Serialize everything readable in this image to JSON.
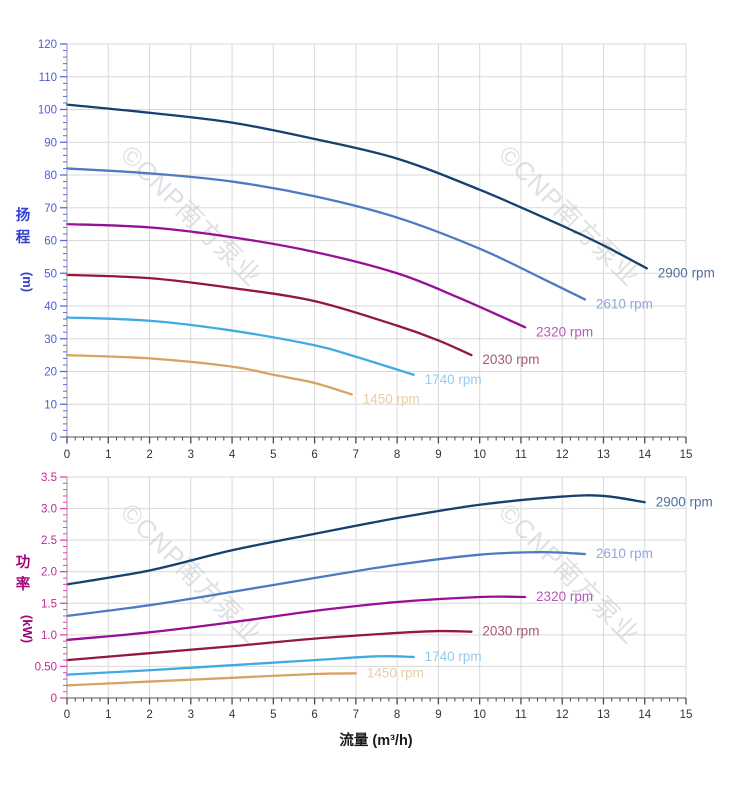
{
  "figure": {
    "description": "Pump performance curves: head and power versus flow at six speeds",
    "watermark": {
      "text": "©CNP南方泵业",
      "color": "#c5c8cf",
      "opacity": 0.55
    }
  },
  "style": {
    "background": "#ffffff",
    "grid_color": "#d9d9d9",
    "axis_line_color": "#9a9a9a",
    "x_axis_line_color": "#8c8c8c",
    "x_tick_color": "#4a4a4a",
    "x_tick_label_color": "#333333",
    "x_title_color": "#1a1a1a"
  },
  "chart_data": [
    {
      "type": "line",
      "name": "head-vs-flow",
      "ylabel_cn": "扬程",
      "ylabel_unit": "(m)",
      "xlabel": null,
      "axis_title_color": "#3240cf",
      "tick_label_color": "#4c5ddd",
      "tick_mark_color": "#5a6ae2",
      "xlim": [
        0,
        15
      ],
      "ylim": [
        0,
        120
      ],
      "x_major_step": 1,
      "x_minor_step": 0.2,
      "y_major_step": 10,
      "y_minor_step": 2,
      "x_tick_labels": [
        "0",
        "1",
        "2",
        "3",
        "4",
        "5",
        "6",
        "7",
        "8",
        "9",
        "10",
        "11",
        "12",
        "13",
        "14",
        "15"
      ],
      "y_tick_labels": [
        "0",
        "10",
        "20",
        "30",
        "40",
        "50",
        "60",
        "70",
        "80",
        "90",
        "100",
        "110",
        "120"
      ],
      "grid": true,
      "legend_position": "end-of-curve",
      "series": [
        {
          "name": "2900 rpm",
          "color": "#16406e",
          "label_color": "#4e6f9d",
          "points": [
            [
              0,
              101.5
            ],
            [
              2,
              99
            ],
            [
              4,
              96
            ],
            [
              6,
              91
            ],
            [
              8,
              85
            ],
            [
              10,
              75.5
            ],
            [
              12,
              64.5
            ],
            [
              13,
              58.5
            ],
            [
              14.05,
              51.5
            ]
          ]
        },
        {
          "name": "2610 rpm",
          "color": "#4e79c4",
          "label_color": "#92a7da",
          "points": [
            [
              0,
              82
            ],
            [
              2,
              80.5
            ],
            [
              4,
              78
            ],
            [
              6,
              73.5
            ],
            [
              8,
              67
            ],
            [
              10,
              57.5
            ],
            [
              11.5,
              48.5
            ],
            [
              12.55,
              42
            ]
          ]
        },
        {
          "name": "2320 rpm",
          "color": "#970f97",
          "label_color": "#b75ab7",
          "points": [
            [
              0,
              65
            ],
            [
              2,
              64
            ],
            [
              4,
              61
            ],
            [
              6,
              56.5
            ],
            [
              8,
              50
            ],
            [
              9.5,
              42.5
            ],
            [
              11.1,
              33.5
            ]
          ]
        },
        {
          "name": "2030 rpm",
          "color": "#931839",
          "label_color": "#a65a79",
          "points": [
            [
              0,
              49.5
            ],
            [
              2,
              48.5
            ],
            [
              4,
              45.5
            ],
            [
              6,
              41.5
            ],
            [
              8,
              34
            ],
            [
              9,
              29.5
            ],
            [
              9.8,
              25
            ]
          ]
        },
        {
          "name": "1740 rpm",
          "color": "#3fabe4",
          "label_color": "#94cbee",
          "points": [
            [
              0,
              36.5
            ],
            [
              2,
              35.5
            ],
            [
              4,
              32.5
            ],
            [
              6,
              28
            ],
            [
              7,
              24.5
            ],
            [
              8.4,
              19
            ]
          ]
        },
        {
          "name": "1450 rpm",
          "color": "#d8a263",
          "label_color": "#e9cda4",
          "points": [
            [
              0,
              25
            ],
            [
              2,
              24
            ],
            [
              4,
              21.5
            ],
            [
              5,
              19
            ],
            [
              6,
              16.5
            ],
            [
              6.9,
              13
            ]
          ]
        }
      ]
    },
    {
      "type": "line",
      "name": "power-vs-flow",
      "ylabel_cn": "功率",
      "ylabel_unit": "(kW)",
      "xlabel": "流量 (m³/h)",
      "axis_title_color": "#a0077a",
      "tick_label_color": "#c02a92",
      "tick_mark_color": "#ea3cb6",
      "xlim": [
        0,
        15
      ],
      "ylim": [
        0,
        3.5
      ],
      "x_major_step": 1,
      "x_minor_step": 0.2,
      "y_major_step": 0.5,
      "y_minor_step": 0.1,
      "x_tick_labels": [
        "0",
        "1",
        "2",
        "3",
        "4",
        "5",
        "6",
        "7",
        "8",
        "9",
        "10",
        "11",
        "12",
        "13",
        "14",
        "15"
      ],
      "y_tick_labels": [
        "0",
        "0.50",
        "1.0",
        "1.5",
        "2.0",
        "2.5",
        "3.0",
        "3.5"
      ],
      "grid": true,
      "legend_position": "end-of-curve",
      "series": [
        {
          "name": "2900 rpm",
          "color": "#16406e",
          "label_color": "#4e6f9d",
          "points": [
            [
              0,
              1.8
            ],
            [
              2,
              2.02
            ],
            [
              4,
              2.34
            ],
            [
              6,
              2.6
            ],
            [
              8,
              2.85
            ],
            [
              10,
              3.06
            ],
            [
              12,
              3.19
            ],
            [
              13,
              3.2
            ],
            [
              14,
              3.1
            ]
          ]
        },
        {
          "name": "2610 rpm",
          "color": "#4e79c4",
          "label_color": "#92a7da",
          "points": [
            [
              0,
              1.3
            ],
            [
              2,
              1.47
            ],
            [
              4,
              1.68
            ],
            [
              6,
              1.9
            ],
            [
              8,
              2.11
            ],
            [
              10,
              2.27
            ],
            [
              11.5,
              2.31
            ],
            [
              12.55,
              2.28
            ]
          ]
        },
        {
          "name": "2320 rpm",
          "color": "#970f97",
          "label_color": "#b75ab7",
          "points": [
            [
              0,
              0.92
            ],
            [
              2,
              1.04
            ],
            [
              4,
              1.2
            ],
            [
              6,
              1.38
            ],
            [
              8,
              1.52
            ],
            [
              10,
              1.6
            ],
            [
              11.1,
              1.6
            ]
          ]
        },
        {
          "name": "2030 rpm",
          "color": "#931839",
          "label_color": "#a65a79",
          "points": [
            [
              0,
              0.6
            ],
            [
              2,
              0.71
            ],
            [
              4,
              0.82
            ],
            [
              6,
              0.94
            ],
            [
              8,
              1.03
            ],
            [
              9,
              1.06
            ],
            [
              9.8,
              1.05
            ]
          ]
        },
        {
          "name": "1740 rpm",
          "color": "#3fabe4",
          "label_color": "#94cbee",
          "points": [
            [
              0,
              0.37
            ],
            [
              2,
              0.44
            ],
            [
              4,
              0.52
            ],
            [
              6,
              0.6
            ],
            [
              7.5,
              0.66
            ],
            [
              8.4,
              0.65
            ]
          ]
        },
        {
          "name": "1450 rpm",
          "color": "#d8a263",
          "label_color": "#e9cda4",
          "points": [
            [
              0,
              0.2
            ],
            [
              2,
              0.26
            ],
            [
              4,
              0.32
            ],
            [
              6,
              0.38
            ],
            [
              7,
              0.39
            ]
          ]
        }
      ]
    }
  ]
}
